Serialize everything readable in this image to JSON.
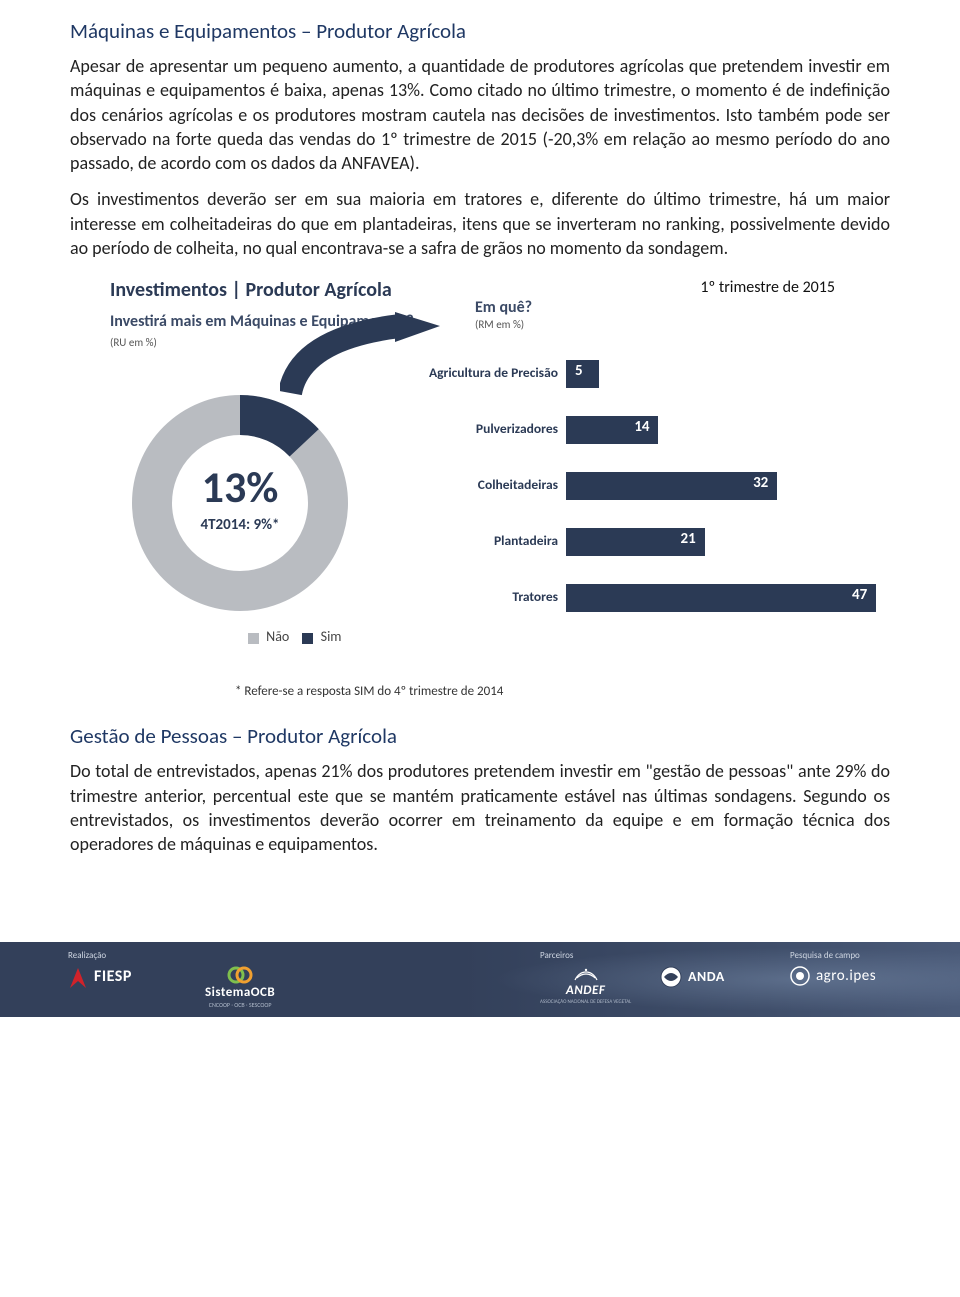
{
  "section1": {
    "title": "Máquinas e Equipamentos – Produtor Agrícola",
    "p1": "Apesar de apresentar um pequeno aumento, a quantidade de produtores agrícolas que pretendem investir em máquinas e equipamentos é baixa, apenas 13%. Como citado no último trimestre, o momento é de indefinição dos cenários agrícolas e os produtores mostram cautela nas decisões de investimentos. Isto também pode ser observado na forte queda das vendas do 1º trimestre de 2015 (-20,3% em relação ao mesmo período do ano passado, de acordo com os dados da ANFAVEA).",
    "p2": "Os investimentos deverão ser em sua maioria em tratores e, diferente do último trimestre, há um maior interesse em colheitadeiras do que em plantadeiras, itens que se inverteram no ranking, possivelmente devido ao período de colheita, no qual encontrava-se a safra de grãos no momento da sondagem."
  },
  "chart": {
    "title": "Investimentos | Produtor Agrícola",
    "period": "1º trimestre de 2015",
    "donut": {
      "question": "Investirá mais em Máquinas e Equipamentos?",
      "unit": "(RU em %)",
      "yes_pct": 13,
      "no_pct": 87,
      "center_pct": "13%",
      "center_prev": "4T2014: 9%*",
      "color_yes": "#2b3a55",
      "color_no": "#b9bcc1",
      "legend_no": "Não",
      "legend_yes": "Sim"
    },
    "bars": {
      "title": "Em quê?",
      "unit": "(RM em %)",
      "color": "#2b3a55",
      "max": 47,
      "track_width": 310,
      "items": [
        {
          "label": "Agricultura de Precisão",
          "value": 5
        },
        {
          "label": "Pulverizadores",
          "value": 14
        },
        {
          "label": "Colheitadeiras",
          "value": 32
        },
        {
          "label": "Plantadeira",
          "value": 21
        },
        {
          "label": "Tratores",
          "value": 47
        }
      ]
    },
    "footnote": "* Refere-se a resposta SIM do 4º trimestre de 2014"
  },
  "section2": {
    "title": "Gestão de Pessoas – Produtor Agrícola",
    "p1": "Do total de entrevistados, apenas 21% dos produtores pretendem investir em \"gestão de pessoas\" ante 29% do trimestre anterior, percentual este que se mantém praticamente estável nas últimas sondagens. Segundo os entrevistados, os investimentos deverão ocorrer em treinamento da equipe e em formação técnica dos operadores de máquinas e equipamentos."
  },
  "footer": {
    "realizacao": "Realização",
    "parceiros": "Parceiros",
    "pesquisa": "Pesquisa de campo",
    "fiesp": "FIESP",
    "ocb": "SistemaOCB",
    "ocb_sub": "CNCOOP · OCB · SESCOOP",
    "andef": "ANDEF",
    "andef_sub": "ASSOCIAÇÃO NACIONAL DE DEFESA VEGETAL",
    "anda": "ANDA",
    "ipes": "agro.ipes"
  }
}
